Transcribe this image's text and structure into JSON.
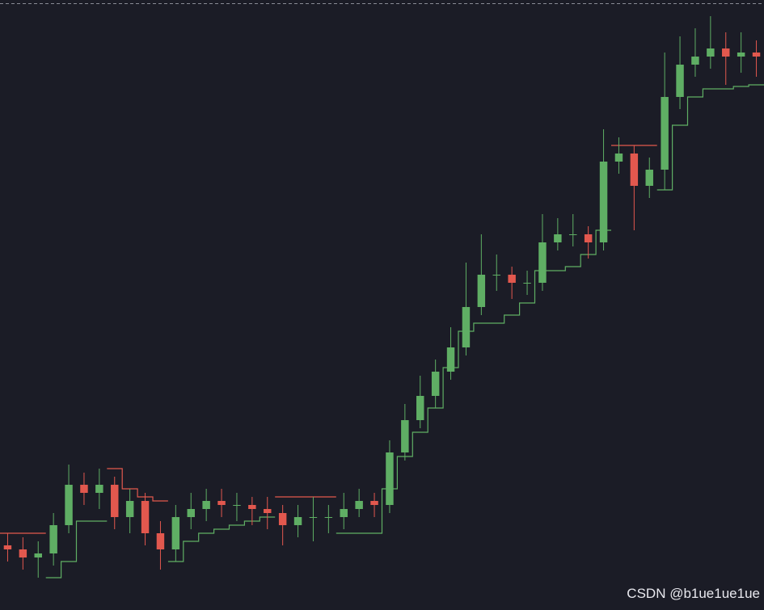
{
  "chart_data": {
    "type": "candlestick",
    "watermark": "CSDN @b1ue1ue1ue",
    "ylim": [
      0,
      755
    ],
    "up_color": "#5fae64",
    "down_color": "#e2584e",
    "open": [
      80,
      75,
      65,
      70,
      105,
      155,
      145,
      155,
      115,
      135,
      95,
      75,
      115,
      125,
      135,
      130,
      130,
      125,
      120,
      105,
      115,
      115,
      115,
      125,
      135,
      130,
      195,
      235,
      265,
      295,
      325,
      375,
      415,
      415,
      405,
      405,
      455,
      465,
      465,
      455,
      555,
      565,
      525,
      545,
      635,
      675,
      685,
      695,
      685,
      690
    ],
    "high": [
      95,
      90,
      85,
      120,
      180,
      170,
      175,
      165,
      150,
      145,
      110,
      130,
      145,
      150,
      150,
      145,
      140,
      140,
      130,
      130,
      140,
      130,
      145,
      150,
      145,
      210,
      255,
      290,
      310,
      350,
      430,
      465,
      440,
      425,
      420,
      490,
      485,
      490,
      475,
      595,
      585,
      575,
      560,
      690,
      710,
      720,
      735,
      715,
      715,
      705
    ],
    "low": [
      60,
      50,
      40,
      55,
      95,
      130,
      125,
      100,
      95,
      80,
      50,
      60,
      100,
      110,
      115,
      110,
      105,
      100,
      80,
      90,
      85,
      95,
      100,
      115,
      115,
      120,
      185,
      225,
      250,
      285,
      315,
      365,
      395,
      385,
      390,
      395,
      445,
      450,
      435,
      445,
      540,
      470,
      510,
      520,
      620,
      660,
      670,
      650,
      665,
      660
    ],
    "close": [
      75,
      65,
      70,
      105,
      155,
      145,
      155,
      115,
      135,
      95,
      75,
      115,
      125,
      135,
      130,
      130,
      125,
      120,
      105,
      115,
      115,
      115,
      125,
      135,
      130,
      195,
      235,
      265,
      295,
      325,
      375,
      415,
      415,
      405,
      405,
      455,
      465,
      465,
      455,
      555,
      565,
      525,
      545,
      635,
      675,
      685,
      695,
      685,
      690,
      685
    ],
    "supertrend_up": [
      null,
      null,
      null,
      40,
      60,
      110,
      110,
      null,
      null,
      null,
      null,
      60,
      85,
      95,
      100,
      105,
      110,
      115,
      null,
      null,
      null,
      null,
      95,
      95,
      95,
      150,
      190,
      220,
      250,
      300,
      345,
      355,
      355,
      365,
      380,
      420,
      420,
      425,
      440,
      470,
      null,
      null,
      null,
      520,
      600,
      635,
      645,
      645,
      648,
      650
    ],
    "supertrend_down": [
      95,
      95,
      95,
      null,
      null,
      null,
      null,
      175,
      150,
      140,
      135,
      null,
      null,
      null,
      null,
      null,
      null,
      null,
      140,
      140,
      140,
      140,
      null,
      null,
      null,
      null,
      null,
      null,
      null,
      null,
      null,
      null,
      null,
      null,
      null,
      null,
      null,
      null,
      null,
      null,
      575,
      575,
      575,
      null,
      null,
      null,
      null,
      null,
      null,
      null
    ]
  }
}
